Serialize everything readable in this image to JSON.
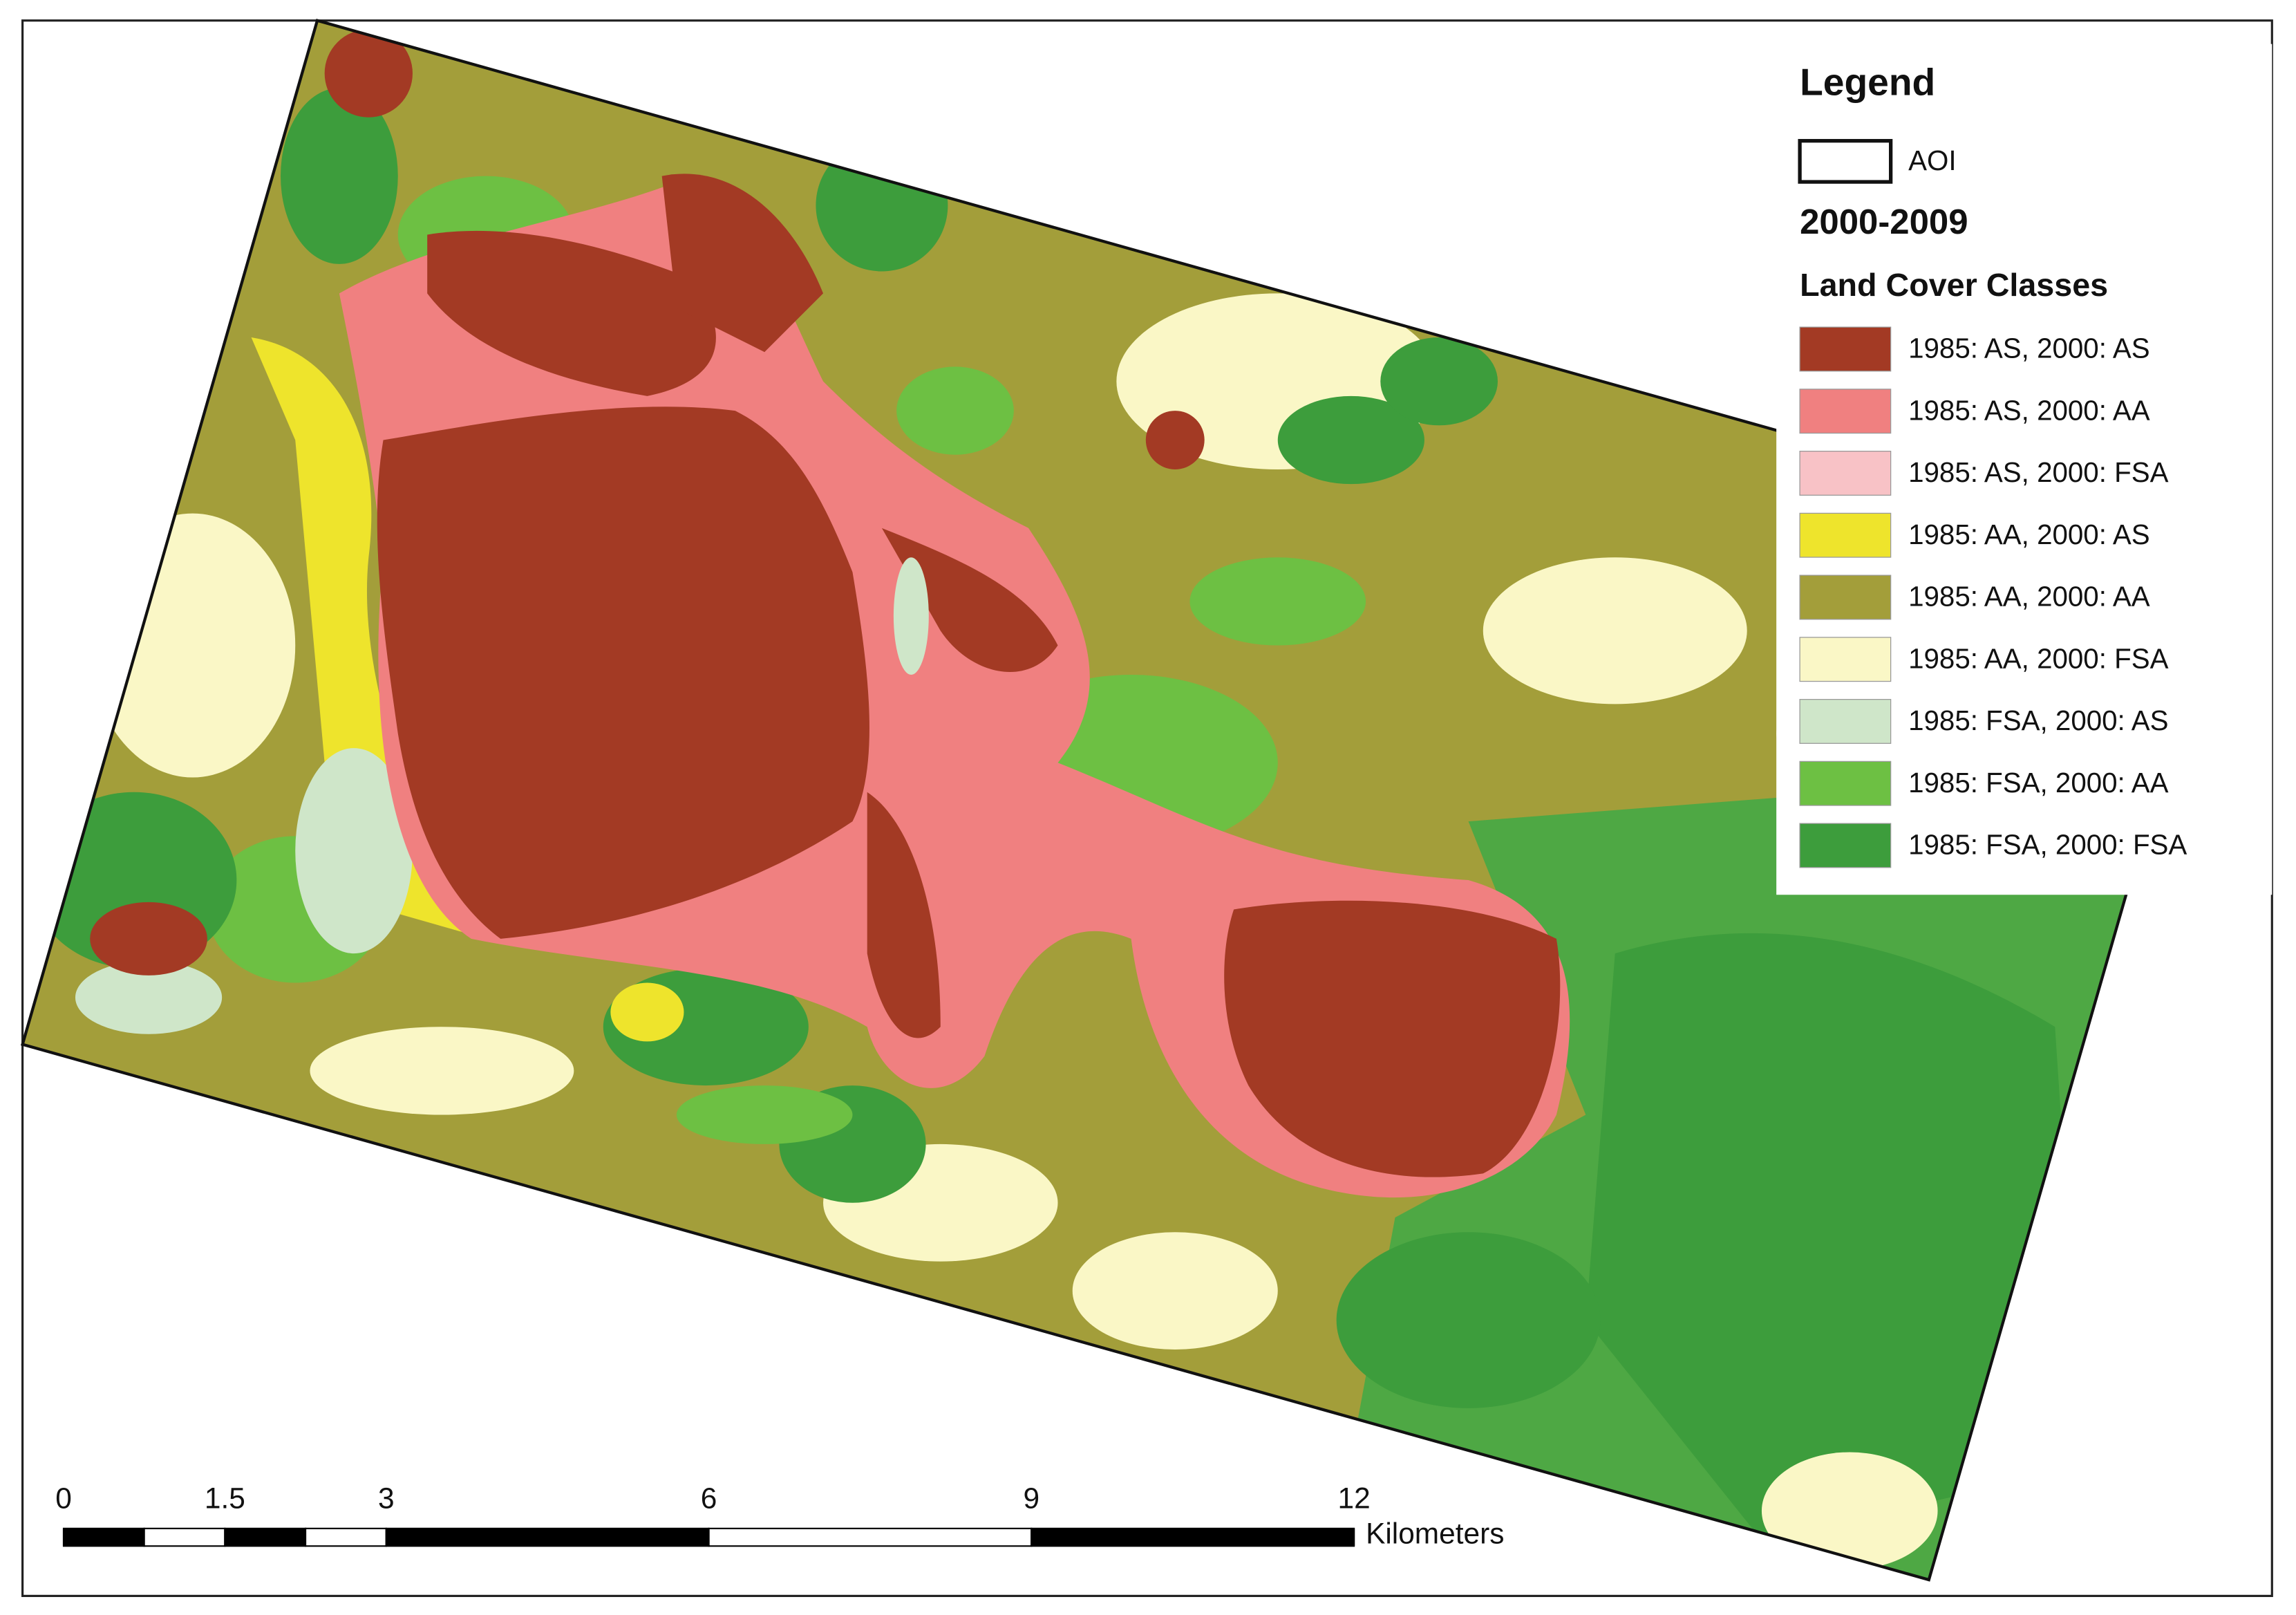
{
  "legend": {
    "title": "Legend",
    "aoi_label": "AOI",
    "period": "2000-2009",
    "classes_title": "Land Cover Classes",
    "classes": [
      {
        "label": "1985: AS, 2000: AS",
        "color": "#a33a24"
      },
      {
        "label": "1985: AS, 2000: AA",
        "color": "#f08080"
      },
      {
        "label": "1985: AS, 2000: FSA",
        "color": "#f8c2c6"
      },
      {
        "label": "1985: AA, 2000: AS",
        "color": "#eee42c"
      },
      {
        "label": "1985: AA, 2000: AA",
        "color": "#a39e3a"
      },
      {
        "label": "1985: AA, 2000: FSA",
        "color": "#faf7c6"
      },
      {
        "label": "1985: FSA, 2000: AS",
        "color": "#cfe6c9"
      },
      {
        "label": "1985: FSA, 2000: AA",
        "color": "#6dc043"
      },
      {
        "label": "1985: FSA, 2000: FSA",
        "color": "#3d9d3c"
      }
    ]
  },
  "scale_bar": {
    "ticks": [
      0,
      1.5,
      3,
      6,
      9,
      12
    ],
    "unit": "Kilometers"
  }
}
